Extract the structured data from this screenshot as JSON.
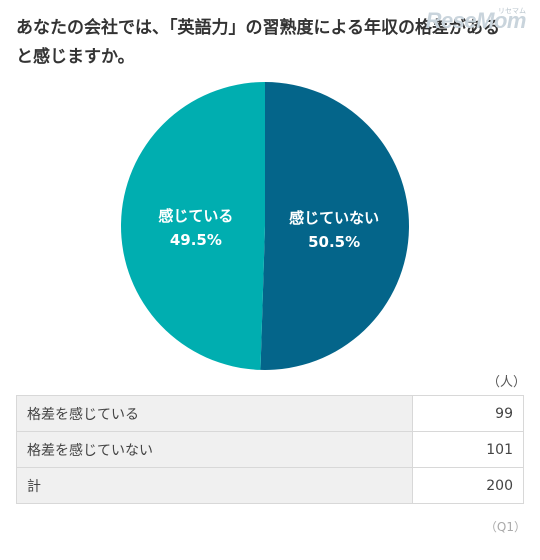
{
  "title": "あなたの会社では、「英語力」の習熟度による年収の格差があると感じますか。",
  "logo": {
    "text": "ReseMom",
    "sub": "リセマム"
  },
  "chart_data": {
    "type": "pie",
    "slices": [
      {
        "label": "感じていない",
        "value": 50.5,
        "display": "50.5%",
        "color": "#04658a"
      },
      {
        "label": "感じている",
        "value": 49.5,
        "display": "49.5%",
        "color": "#00aeb0"
      }
    ],
    "start_angle": "12 o'clock",
    "direction": "clockwise"
  },
  "table": {
    "unit": "（人）",
    "rows": [
      {
        "label": "格差を感じている",
        "value": "99"
      },
      {
        "label": "格差を感じていない",
        "value": "101"
      },
      {
        "label": "計",
        "value": "200"
      }
    ]
  },
  "source": "（Q1）"
}
